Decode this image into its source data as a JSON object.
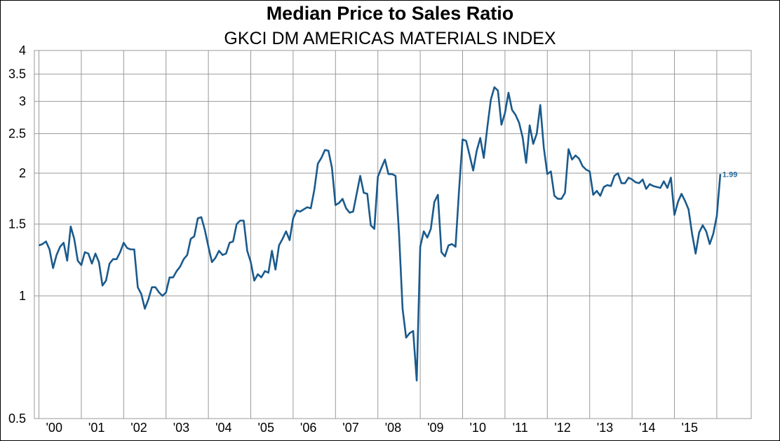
{
  "chart_data": {
    "type": "line",
    "title": "Median Price to Sales Ratio",
    "subtitle": "GKCI DM AMERICAS MATERIALS INDEX",
    "xlabel": "",
    "ylabel": "",
    "y_scale": "log",
    "ylim": [
      0.5,
      4
    ],
    "y_ticks": [
      0.5,
      1,
      1.5,
      2,
      2.5,
      3,
      3.5,
      4
    ],
    "y_tick_labels": [
      "0.5",
      "1",
      "1.5",
      "2",
      "2.5",
      "3",
      "3.5",
      "4"
    ],
    "x_tick_labels": [
      "'00",
      "'01",
      "'02",
      "'03",
      "'04",
      "'05",
      "'06",
      "'07",
      "'08",
      "'09",
      "'10",
      "'11",
      "'12",
      "'13",
      "'14",
      "'15"
    ],
    "grid": true,
    "line_color": "#1a5a8c",
    "last_value_label": "1.99",
    "series": [
      {
        "values": [
          1.33,
          1.34,
          1.36,
          1.3,
          1.17,
          1.26,
          1.32,
          1.35,
          1.22,
          1.48,
          1.38,
          1.22,
          1.19,
          1.28,
          1.27,
          1.2,
          1.27,
          1.21,
          1.06,
          1.09,
          1.2,
          1.23,
          1.23,
          1.28,
          1.35,
          1.31,
          1.3,
          1.3,
          1.05,
          1.01,
          0.93,
          0.98,
          1.05,
          1.05,
          1.02,
          1.0,
          1.02,
          1.11,
          1.11,
          1.15,
          1.18,
          1.23,
          1.26,
          1.38,
          1.4,
          1.55,
          1.56,
          1.45,
          1.32,
          1.21,
          1.24,
          1.29,
          1.26,
          1.27,
          1.35,
          1.36,
          1.5,
          1.53,
          1.53,
          1.29,
          1.21,
          1.09,
          1.13,
          1.11,
          1.15,
          1.14,
          1.29,
          1.16,
          1.33,
          1.38,
          1.44,
          1.37,
          1.55,
          1.62,
          1.61,
          1.63,
          1.65,
          1.64,
          1.82,
          2.11,
          2.18,
          2.28,
          2.27,
          2.06,
          1.67,
          1.69,
          1.73,
          1.64,
          1.6,
          1.61,
          1.78,
          1.97,
          1.79,
          1.78,
          1.49,
          1.46,
          1.96,
          2.06,
          2.16,
          1.99,
          1.99,
          1.97,
          1.42,
          0.93,
          0.79,
          0.81,
          0.82,
          0.62,
          1.32,
          1.44,
          1.39,
          1.46,
          1.7,
          1.77,
          1.28,
          1.25,
          1.33,
          1.34,
          1.32,
          1.82,
          2.42,
          2.4,
          2.21,
          2.03,
          2.27,
          2.44,
          2.18,
          2.59,
          3.03,
          3.25,
          3.19,
          2.63,
          2.81,
          3.15,
          2.86,
          2.78,
          2.66,
          2.45,
          2.12,
          2.62,
          2.36,
          2.5,
          2.94,
          2.31,
          1.99,
          2.02,
          1.76,
          1.73,
          1.73,
          1.79,
          2.29,
          2.16,
          2.21,
          2.17,
          2.08,
          2.04,
          2.02,
          1.77,
          1.81,
          1.76,
          1.85,
          1.87,
          1.86,
          1.97,
          2.0,
          1.89,
          1.89,
          1.95,
          1.93,
          1.9,
          1.89,
          1.93,
          1.83,
          1.88,
          1.86,
          1.85,
          1.84,
          1.91,
          1.84,
          1.95,
          1.58,
          1.7,
          1.78,
          1.71,
          1.63,
          1.42,
          1.27,
          1.43,
          1.49,
          1.44,
          1.34,
          1.42,
          1.57,
          1.99
        ]
      }
    ]
  }
}
